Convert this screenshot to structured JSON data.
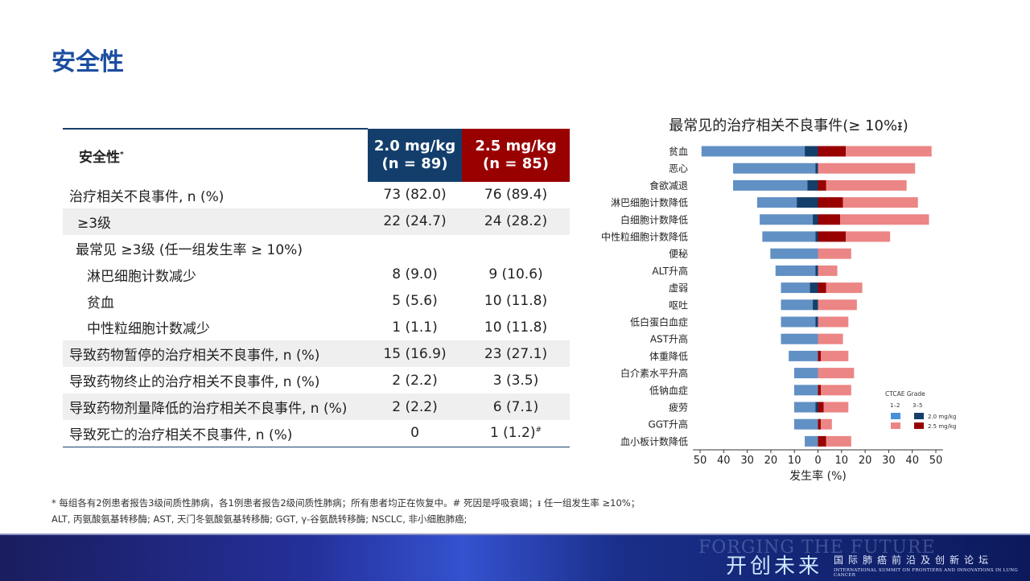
{
  "title": "安全性",
  "table": {
    "header": {
      "label": "安全性",
      "label_sup": "*",
      "col1": "2.0 mg/kg",
      "col1_n": "(n = 89)",
      "col2": "2.5 mg/kg",
      "col2_n": "(n = 85)"
    },
    "rows": [
      {
        "label": "治疗相关不良事件, n (%)",
        "a": "73 (82.0)",
        "b": "76 (89.4)"
      },
      {
        "label": "≥3级",
        "a": "22 (24.7)",
        "b": "24 (28.2)"
      },
      {
        "label": "最常见 ≥3级 (任一组发生率 ≥ 10%)",
        "a": "",
        "b": ""
      },
      {
        "label": "淋巴细胞计数减少",
        "a": "8 (9.0)",
        "b": "9 (10.6)"
      },
      {
        "label": "贫血",
        "a": "5 (5.6)",
        "b": "10 (11.8)"
      },
      {
        "label": "中性粒细胞计数减少",
        "a": "1 (1.1)",
        "b": "10 (11.8)"
      },
      {
        "label": "导致药物暂停的治疗相关不良事件, n (%)",
        "a": "15 (16.9)",
        "b": "23 (27.1)"
      },
      {
        "label": "导致药物终止的治疗相关不良事件, n (%)",
        "a": "2 (2.2)",
        "b": "3 (3.5)"
      },
      {
        "label": "导致药物剂量降低的治疗相关不良事件, n (%)",
        "a": "2 (2.2)",
        "b": "6 (7.1)"
      },
      {
        "label": "导致死亡的治疗相关不良事件, n (%)",
        "a": "0",
        "b": "1 (1.2)",
        "b_sup": "#"
      }
    ]
  },
  "chart_data": {
    "type": "bar",
    "orientation": "horizontal diverging (stacked)",
    "title": "最常见的治疗相关不良事件(≥ 10%ᵻ)",
    "xlabel": "发生率 (%)",
    "xlim": [
      -50,
      50
    ],
    "xticks": [
      "50",
      "40",
      "30",
      "20",
      "10",
      "0",
      "10",
      "20",
      "30",
      "40",
      "50"
    ],
    "legend": {
      "title": "CTCAE Grade",
      "col_labels": [
        "1–2",
        "3–5"
      ],
      "rows": [
        "2.0 mg/kg",
        "2.5 mg/kg"
      ],
      "placement": "bottom-right"
    },
    "colors": {
      "g12_20": "#6190c4",
      "g35_20": "#143f6b",
      "g12_25": "#ec8585",
      "g35_25": "#990000"
    },
    "categories": [
      "贫血",
      "恶心",
      "食欲减退",
      "淋巴细胞计数降低",
      "白细胞计数降低",
      "中性粒细胞计数降低",
      "便秘",
      "ALT升高",
      "虚弱",
      "呕吐",
      "低白蛋白血症",
      "AST升高",
      "体重降低",
      "白介素水平升高",
      "低钠血症",
      "疲劳",
      "GGT升高",
      "血小板计数降低"
    ],
    "series": [
      {
        "name": "2.0 mg/kg",
        "total": [
          49.4,
          36.0,
          36.0,
          25.8,
          24.7,
          23.6,
          20.2,
          18.0,
          15.7,
          15.7,
          15.7,
          15.7,
          12.4,
          10.1,
          10.1,
          10.1,
          10.1,
          5.6
        ],
        "grade3_5": [
          5.6,
          1.1,
          4.5,
          9.0,
          2.2,
          1.1,
          0,
          1.1,
          3.4,
          2.2,
          1.1,
          0,
          0,
          0,
          0,
          1.1,
          0,
          0
        ]
      },
      {
        "name": "2.5 mg/kg",
        "total": [
          48.2,
          41.2,
          37.6,
          42.4,
          47.1,
          30.6,
          14.1,
          8.2,
          18.8,
          16.5,
          12.9,
          10.6,
          12.9,
          15.3,
          14.1,
          12.9,
          5.9,
          14.1
        ],
        "grade3_5": [
          11.8,
          0,
          3.5,
          10.6,
          9.4,
          11.8,
          0,
          0,
          3.5,
          0,
          0,
          0,
          1.2,
          0,
          1.2,
          2.4,
          1.2,
          3.5
        ]
      }
    ]
  },
  "footnote": {
    "line1": "* 每组各有2例患者报告3级间质性肺病，各1例患者报告2级间质性肺病；所有患者均正在恢复中。# 死因是呼吸衰竭；ᵻ 任一组发生率 ≥10%；",
    "line2": "ALT, 丙氨酸氨基转移酶; AST, 天门冬氨酸氨基转移酶; GGT, γ-谷氨酰转移酶; NSCLC, 非小细胞肺癌;"
  },
  "banner": {
    "en": "FORGING THE FUTURE",
    "cn": "开创未来",
    "sub": "国际肺癌前沿及创新论坛",
    "sub_en": "INTERNATIONAL SUMMIT ON FRONTIERS AND INNOVATIONS IN LUNG CANCER"
  }
}
